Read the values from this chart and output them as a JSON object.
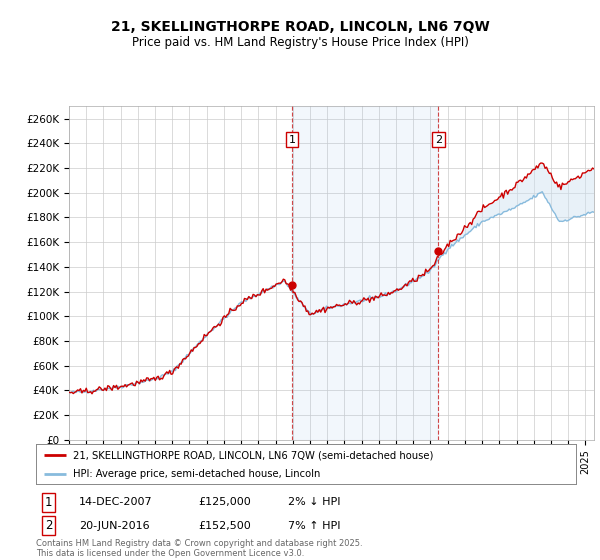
{
  "title_line1": "21, SKELLINGTHORPE ROAD, LINCOLN, LN6 7QW",
  "title_line2": "Price paid vs. HM Land Registry's House Price Index (HPI)",
  "ylim": [
    0,
    270000
  ],
  "yticks": [
    0,
    20000,
    40000,
    60000,
    80000,
    100000,
    120000,
    140000,
    160000,
    180000,
    200000,
    220000,
    240000,
    260000
  ],
  "ytick_labels": [
    "£0",
    "£20K",
    "£40K",
    "£60K",
    "£80K",
    "£100K",
    "£120K",
    "£140K",
    "£160K",
    "£180K",
    "£200K",
    "£220K",
    "£240K",
    "£260K"
  ],
  "xmin": 1995.0,
  "xmax": 2025.5,
  "sale1_x": 2007.95,
  "sale1_y": 125000,
  "sale2_x": 2016.46,
  "sale2_y": 152500,
  "sale1_date": "14-DEC-2007",
  "sale1_price": "£125,000",
  "sale1_hpi": "2% ↓ HPI",
  "sale2_date": "20-JUN-2016",
  "sale2_price": "£152,500",
  "sale2_hpi": "7% ↑ HPI",
  "line1_color": "#cc0000",
  "line2_color": "#88bbdd",
  "fill_color": "#cce0f0",
  "vline_color": "#cc3333",
  "background_color": "#ffffff",
  "grid_color": "#cccccc",
  "legend_line1": "21, SKELLINGTHORPE ROAD, LINCOLN, LN6 7QW (semi-detached house)",
  "legend_line2": "HPI: Average price, semi-detached house, Lincoln",
  "footer": "Contains HM Land Registry data © Crown copyright and database right 2025.\nThis data is licensed under the Open Government Licence v3.0."
}
